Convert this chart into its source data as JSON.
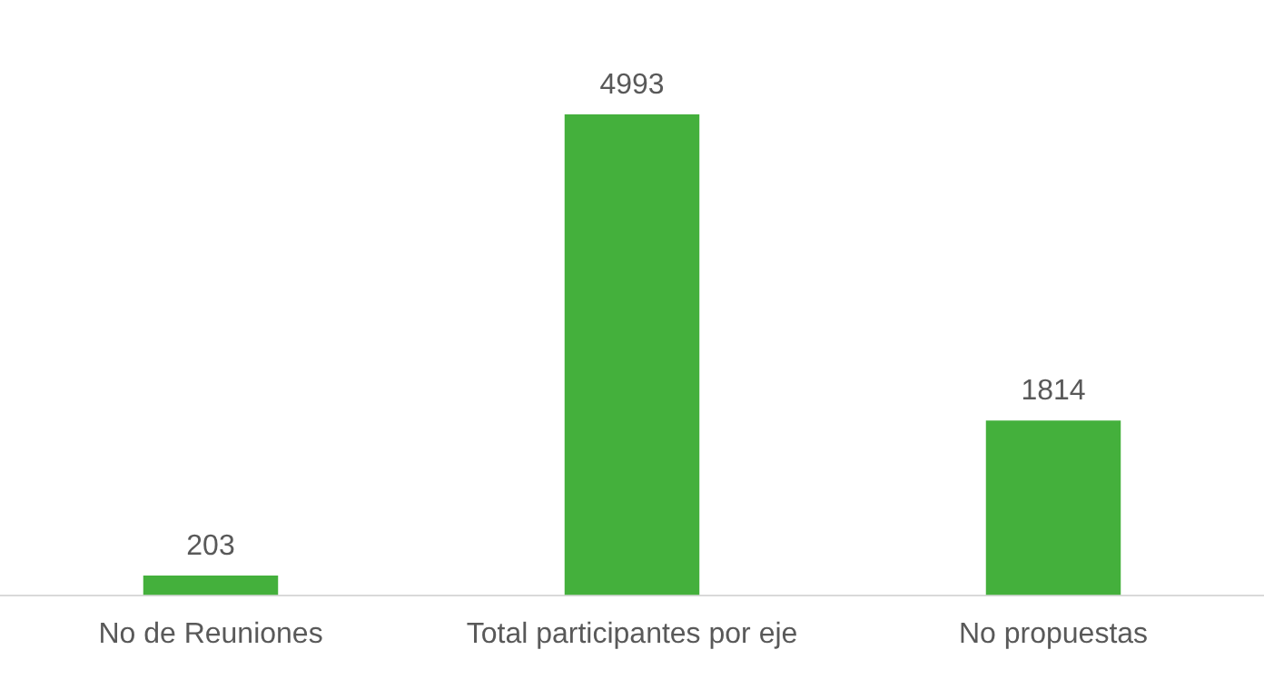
{
  "chart_data": {
    "type": "bar",
    "categories": [
      "No de Reuniones",
      "Total participantes por eje",
      "No propuestas"
    ],
    "values": [
      203,
      4993,
      1814
    ],
    "color": "#44b03c",
    "data_labels": true,
    "grid": false,
    "legend": false
  }
}
